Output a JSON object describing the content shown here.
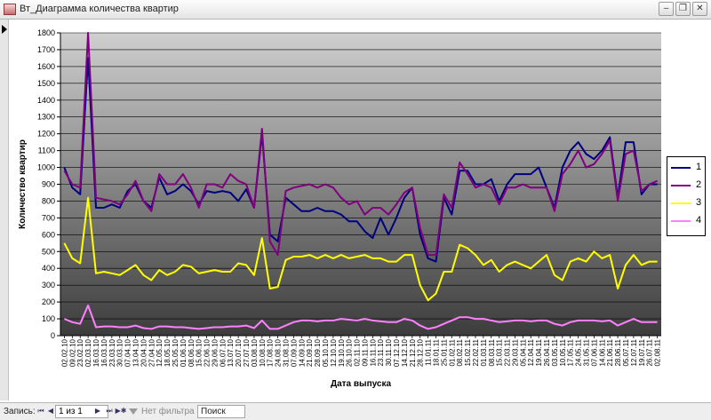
{
  "window": {
    "title": "Вт_Диаграмма количества квартир",
    "icon": "form-icon"
  },
  "controls": {
    "minimize": "‒",
    "restore": "❐",
    "close": "✕"
  },
  "nav": {
    "record_label": "Запись:",
    "first": "⏮",
    "prev": "◀",
    "next": "▶",
    "last": "⏭",
    "new_record": "▶✱",
    "record_value": "1 из 1",
    "filter_label": "Нет фильтра",
    "search_placeholder": "Поиск"
  },
  "chart_data": {
    "type": "line",
    "xlabel": "Дата выпуска",
    "ylabel": "Количество квартир",
    "ylim": [
      0,
      1800
    ],
    "y_ticks": [
      0,
      100,
      200,
      300,
      400,
      500,
      600,
      700,
      800,
      900,
      1000,
      1100,
      1200,
      1300,
      1400,
      1500,
      1600,
      1700,
      1800
    ],
    "grid": true,
    "legend_position": "right",
    "x": [
      "02.02.10",
      "09.02.10",
      "23.02.10",
      "02.03.10",
      "16.03.10",
      "16.03.10",
      "23.03.10",
      "30.03.10",
      "07.04.10",
      "13.04.10",
      "20.04.10",
      "27.04.10",
      "12.05.10",
      "18.05.10",
      "25.05.10",
      "01.06.10",
      "08.06.10",
      "15.06.10",
      "22.06.10",
      "29.06.10",
      "06.07.10",
      "13.07.10",
      "20.07.10",
      "27.07.10",
      "03.08.10",
      "10.08.10",
      "17.08.10",
      "24.08.10",
      "31.08.10",
      "07.09.10",
      "14.09.10",
      "21.09.10",
      "28.09.10",
      "05.10.10",
      "12.10.10",
      "19.10.10",
      "26.10.10",
      "02.11.10",
      "09.11.10",
      "16.11.10",
      "23.11.10",
      "30.11.10",
      "07.12.10",
      "14.12.10",
      "21.12.10",
      "28.12.10",
      "11.01.11",
      "18.01.11",
      "25.01.11",
      "01.02.11",
      "08.02.11",
      "15.02.11",
      "22.02.11",
      "01.03.11",
      "08.03.11",
      "15.03.11",
      "22.03.11",
      "29.03.11",
      "05.04.11",
      "12.04.11",
      "19.04.11",
      "26.04.11",
      "03.05.11",
      "10.05.11",
      "17.05.11",
      "24.05.11",
      "31.05.11",
      "07.06.11",
      "14.06.11",
      "21.06.11",
      "28.06.11",
      "05.07.11",
      "12.07.11",
      "19.07.11",
      "26.07.11",
      "02.08.11"
    ],
    "series": [
      {
        "name": "1",
        "color": "#000080",
        "values": [
          1000,
          880,
          840,
          1650,
          760,
          760,
          780,
          760,
          860,
          900,
          800,
          760,
          940,
          840,
          860,
          900,
          860,
          780,
          860,
          850,
          860,
          850,
          800,
          870,
          760,
          1200,
          600,
          560,
          820,
          780,
          740,
          740,
          760,
          740,
          740,
          720,
          680,
          680,
          620,
          580,
          700,
          600,
          700,
          820,
          880,
          600,
          460,
          440,
          820,
          720,
          980,
          980,
          900,
          900,
          930,
          800,
          900,
          960,
          960,
          960,
          1000,
          880,
          760,
          1000,
          1100,
          1150,
          1080,
          1050,
          1100,
          1180,
          820,
          1150,
          1150,
          840,
          900,
          900
        ]
      },
      {
        "name": "2",
        "color": "#800080",
        "values": [
          980,
          900,
          880,
          1800,
          820,
          810,
          800,
          780,
          840,
          920,
          800,
          740,
          960,
          900,
          900,
          960,
          880,
          760,
          900,
          900,
          880,
          960,
          920,
          900,
          760,
          1230,
          560,
          480,
          860,
          880,
          890,
          900,
          880,
          900,
          880,
          820,
          780,
          800,
          720,
          760,
          760,
          720,
          780,
          850,
          880,
          640,
          480,
          480,
          840,
          760,
          1030,
          960,
          880,
          900,
          880,
          780,
          880,
          880,
          900,
          880,
          880,
          880,
          740,
          960,
          1020,
          1100,
          1000,
          1020,
          1080,
          1160,
          800,
          1080,
          1100,
          860,
          900,
          920
        ]
      },
      {
        "name": "3",
        "color": "#ffff00",
        "values": [
          550,
          460,
          430,
          820,
          370,
          380,
          370,
          360,
          390,
          420,
          360,
          330,
          390,
          360,
          380,
          420,
          410,
          370,
          380,
          390,
          380,
          380,
          430,
          420,
          360,
          580,
          280,
          290,
          450,
          470,
          470,
          480,
          460,
          480,
          460,
          480,
          460,
          470,
          480,
          460,
          460,
          440,
          440,
          480,
          480,
          300,
          210,
          250,
          380,
          380,
          540,
          520,
          480,
          420,
          450,
          380,
          420,
          440,
          420,
          400,
          440,
          480,
          360,
          330,
          440,
          460,
          440,
          500,
          460,
          480,
          280,
          420,
          480,
          420,
          440,
          440
        ]
      },
      {
        "name": "4",
        "color": "#ff80ff",
        "values": [
          100,
          80,
          70,
          180,
          50,
          55,
          55,
          50,
          50,
          60,
          45,
          40,
          55,
          55,
          50,
          50,
          45,
          40,
          45,
          50,
          50,
          55,
          55,
          60,
          45,
          90,
          40,
          40,
          60,
          80,
          90,
          90,
          85,
          90,
          90,
          100,
          95,
          90,
          100,
          90,
          85,
          80,
          80,
          100,
          90,
          60,
          40,
          50,
          70,
          90,
          110,
          110,
          100,
          100,
          90,
          80,
          85,
          90,
          90,
          85,
          90,
          90,
          70,
          60,
          80,
          90,
          90,
          90,
          85,
          90,
          60,
          80,
          100,
          80,
          80,
          80
        ]
      }
    ]
  }
}
